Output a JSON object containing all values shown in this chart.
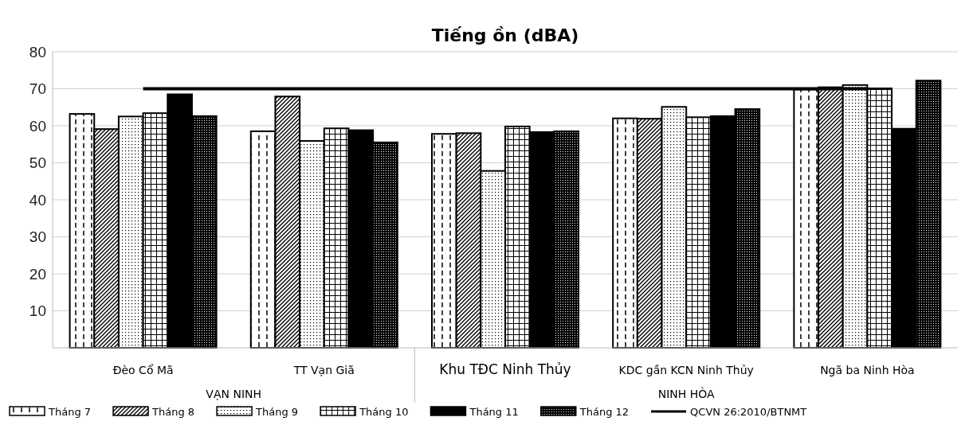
{
  "chart_data": {
    "type": "bar",
    "title": "Tiếng ồn (dBA)",
    "categories": [
      "Đèo Cổ Mã",
      "TT Vạn Giã",
      "Khu TĐC Ninh Thủy",
      "KDC gần KCN Ninh Thủy",
      "Ngã ba Ninh Hòa"
    ],
    "series": [
      {
        "name": "Tháng 7",
        "color": "#000000",
        "values": [
          63.2,
          58.5,
          57.8,
          62,
          69.8
        ]
      },
      {
        "name": "Tháng 8",
        "color": "#000000",
        "values": [
          59.1,
          67.9,
          58,
          61.9,
          70.4
        ]
      },
      {
        "name": "Tháng 9",
        "color": "#000000",
        "values": [
          62.5,
          55.9,
          47.8,
          65.1,
          71
        ]
      },
      {
        "name": "Tháng 10",
        "color": "#000000",
        "values": [
          63.4,
          59.3,
          59.8,
          62.3,
          70.1
        ]
      },
      {
        "name": "Tháng 11",
        "color": "#000000",
        "values": [
          68.5,
          58.8,
          58.3,
          62.6,
          59.2
        ]
      },
      {
        "name": "Tháng 12",
        "color": "#000000",
        "values": [
          62.6,
          55.5,
          58.5,
          64.5,
          72.2
        ]
      },
      {
        "name": "QCVN 26:2010/BTNMT",
        "type": "line",
        "color": "#000000",
        "values": [
          70,
          70,
          70,
          70,
          70
        ]
      }
    ],
    "annotations": [
      "VẠN NINH",
      "NINH HÒA"
    ],
    "ylim": [
      0,
      80
    ],
    "yticks": [
      10,
      20,
      30,
      40,
      50,
      60,
      70,
      80
    ],
    "grid": "y",
    "legend": "bottom",
    "line_style": "solid",
    "marker": "none"
  }
}
